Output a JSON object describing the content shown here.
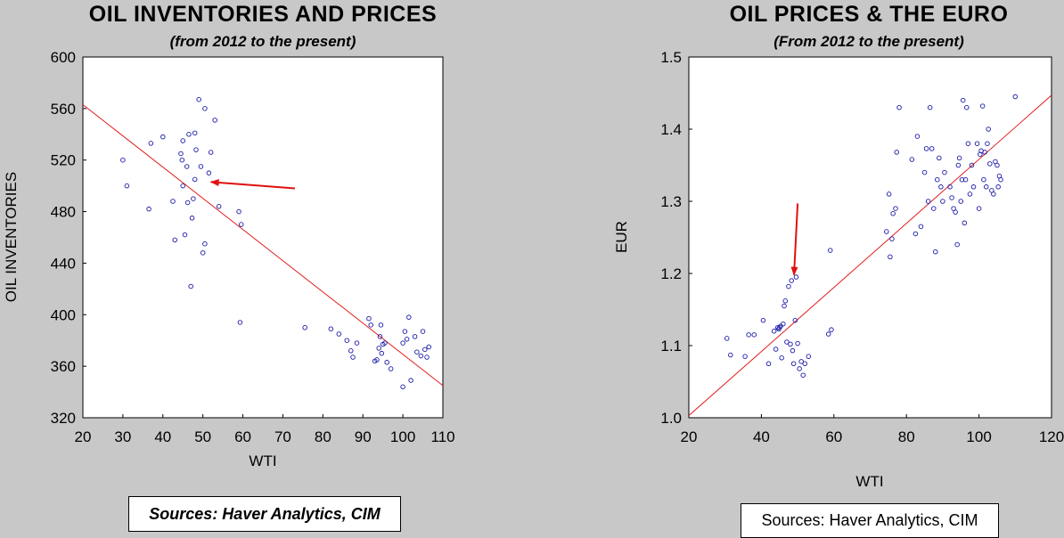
{
  "chart_data": [
    {
      "type": "scatter",
      "title": "OIL INVENTORIES AND PRICES",
      "subtitle": "(from 2012 to the present)",
      "xlabel": "WTI",
      "ylabel": "OIL INVENTORIES",
      "xlim": [
        20,
        110
      ],
      "ylim": [
        320,
        600
      ],
      "xticks": [
        20,
        30,
        40,
        50,
        60,
        70,
        80,
        90,
        100,
        110
      ],
      "yticks": [
        320,
        360,
        400,
        440,
        480,
        520,
        560,
        600
      ],
      "grid": false,
      "marker_color": "#1a1aa8",
      "fit_color": "#e02020",
      "arrow_color": "#e01010",
      "fit_line": [
        [
          20,
          563
        ],
        [
          110,
          345
        ]
      ],
      "arrow": {
        "from": [
          73,
          498
        ],
        "to": [
          52,
          503
        ]
      },
      "points": [
        [
          30,
          520
        ],
        [
          31,
          500
        ],
        [
          36.5,
          482
        ],
        [
          37,
          533
        ],
        [
          40,
          538
        ],
        [
          42.5,
          488
        ],
        [
          43,
          458
        ],
        [
          44.5,
          525
        ],
        [
          44.8,
          520
        ],
        [
          45,
          535
        ],
        [
          45,
          500
        ],
        [
          45.5,
          462
        ],
        [
          46,
          515
        ],
        [
          46.2,
          487
        ],
        [
          46.5,
          540
        ],
        [
          47,
          422
        ],
        [
          47.3,
          475
        ],
        [
          47.6,
          490
        ],
        [
          48,
          505
        ],
        [
          48,
          541
        ],
        [
          48.3,
          528
        ],
        [
          49,
          567
        ],
        [
          49.5,
          515
        ],
        [
          50,
          448
        ],
        [
          50.5,
          455
        ],
        [
          50.5,
          560
        ],
        [
          51.5,
          510
        ],
        [
          52,
          526
        ],
        [
          53,
          551
        ],
        [
          54,
          484
        ],
        [
          59,
          480
        ],
        [
          59.3,
          394
        ],
        [
          59.6,
          470
        ],
        [
          75.5,
          390
        ],
        [
          82,
          389
        ],
        [
          84,
          385
        ],
        [
          86,
          380
        ],
        [
          87,
          372
        ],
        [
          87.5,
          367
        ],
        [
          88.5,
          378
        ],
        [
          91.5,
          397
        ],
        [
          92,
          392
        ],
        [
          93,
          364
        ],
        [
          93.5,
          365
        ],
        [
          94,
          374
        ],
        [
          94.3,
          383
        ],
        [
          94.5,
          392
        ],
        [
          94.7,
          370
        ],
        [
          95,
          377
        ],
        [
          95.5,
          378
        ],
        [
          96,
          363
        ],
        [
          97,
          358
        ],
        [
          100,
          344
        ],
        [
          100,
          378
        ],
        [
          100.5,
          387
        ],
        [
          101,
          381
        ],
        [
          101.5,
          398
        ],
        [
          102,
          349
        ],
        [
          103,
          383
        ],
        [
          103.5,
          371
        ],
        [
          104.5,
          368
        ],
        [
          105,
          387
        ],
        [
          105.5,
          373
        ],
        [
          106,
          367
        ],
        [
          106.5,
          375
        ]
      ]
    },
    {
      "type": "scatter",
      "title": "OIL PRICES & THE EURO",
      "subtitle": "(From 2012 to the present)",
      "xlabel": "WTI",
      "ylabel": "EUR",
      "xlim": [
        20,
        120
      ],
      "ylim": [
        1.0,
        1.5
      ],
      "xticks": [
        20,
        40,
        60,
        80,
        100,
        120
      ],
      "yticks": [
        1.0,
        1.1,
        1.2,
        1.3,
        1.4,
        1.5
      ],
      "ytick_labels": [
        "1.0",
        "1.1",
        "1.2",
        "1.3",
        "1.4",
        "1.5"
      ],
      "grid": false,
      "marker_color": "#1a1aa8",
      "fit_color": "#e02020",
      "arrow_color": "#e01010",
      "fit_line": [
        [
          20,
          1.003
        ],
        [
          120,
          1.447
        ]
      ],
      "arrow": {
        "from": [
          50,
          1.297
        ],
        "to": [
          49,
          1.198
        ]
      },
      "points": [
        [
          30.5,
          1.11
        ],
        [
          31.5,
          1.087
        ],
        [
          35.5,
          1.085
        ],
        [
          36.5,
          1.115
        ],
        [
          38,
          1.115
        ],
        [
          40.5,
          1.135
        ],
        [
          42,
          1.075
        ],
        [
          43.5,
          1.12
        ],
        [
          44,
          1.095
        ],
        [
          44.5,
          1.125
        ],
        [
          44.8,
          1.123
        ],
        [
          45,
          1.125
        ],
        [
          45.3,
          1.127
        ],
        [
          45.6,
          1.083
        ],
        [
          46,
          1.13
        ],
        [
          46.3,
          1.155
        ],
        [
          46.6,
          1.162
        ],
        [
          47,
          1.105
        ],
        [
          47.5,
          1.182
        ],
        [
          48,
          1.102
        ],
        [
          48.3,
          1.19
        ],
        [
          48.6,
          1.093
        ],
        [
          48.9,
          1.075
        ],
        [
          49.3,
          1.135
        ],
        [
          49.6,
          1.195
        ],
        [
          50,
          1.103
        ],
        [
          50.5,
          1.068
        ],
        [
          51,
          1.078
        ],
        [
          51.5,
          1.059
        ],
        [
          52,
          1.075
        ],
        [
          53,
          1.085
        ],
        [
          58.5,
          1.116
        ],
        [
          59,
          1.232
        ],
        [
          59.3,
          1.122
        ],
        [
          74.5,
          1.258
        ],
        [
          75.2,
          1.31
        ],
        [
          75.5,
          1.223
        ],
        [
          76,
          1.248
        ],
        [
          76.3,
          1.283
        ],
        [
          77,
          1.29
        ],
        [
          77.3,
          1.368
        ],
        [
          78,
          1.43
        ],
        [
          81.5,
          1.358
        ],
        [
          82.5,
          1.255
        ],
        [
          83,
          1.39
        ],
        [
          84,
          1.265
        ],
        [
          85,
          1.34
        ],
        [
          85.5,
          1.373
        ],
        [
          86,
          1.3
        ],
        [
          86.5,
          1.43
        ],
        [
          87,
          1.373
        ],
        [
          87.5,
          1.29
        ],
        [
          88,
          1.23
        ],
        [
          88.5,
          1.33
        ],
        [
          89,
          1.36
        ],
        [
          89.5,
          1.32
        ],
        [
          90,
          1.3
        ],
        [
          90.5,
          1.34
        ],
        [
          92,
          1.32
        ],
        [
          92.5,
          1.305
        ],
        [
          93,
          1.29
        ],
        [
          93.5,
          1.285
        ],
        [
          94,
          1.24
        ],
        [
          94.3,
          1.35
        ],
        [
          94.6,
          1.36
        ],
        [
          95,
          1.3
        ],
        [
          95.3,
          1.33
        ],
        [
          95.6,
          1.44
        ],
        [
          96,
          1.27
        ],
        [
          96.3,
          1.33
        ],
        [
          96.6,
          1.43
        ],
        [
          97,
          1.38
        ],
        [
          97.5,
          1.31
        ],
        [
          98,
          1.35
        ],
        [
          98.5,
          1.32
        ],
        [
          99.5,
          1.38
        ],
        [
          100,
          1.29
        ],
        [
          100.3,
          1.365
        ],
        [
          100.6,
          1.37
        ],
        [
          101,
          1.432
        ],
        [
          101.3,
          1.33
        ],
        [
          101.6,
          1.368
        ],
        [
          102,
          1.32
        ],
        [
          102.3,
          1.38
        ],
        [
          102.6,
          1.4
        ],
        [
          103,
          1.352
        ],
        [
          103.5,
          1.315
        ],
        [
          104,
          1.31
        ],
        [
          104.5,
          1.355
        ],
        [
          105,
          1.35
        ],
        [
          105.3,
          1.32
        ],
        [
          105.6,
          1.335
        ],
        [
          106,
          1.33
        ],
        [
          110,
          1.445
        ]
      ]
    }
  ],
  "sources": {
    "left": "Sources: Haver Analytics, CIM",
    "right": "Sources:  Haver Analytics, CIM"
  }
}
